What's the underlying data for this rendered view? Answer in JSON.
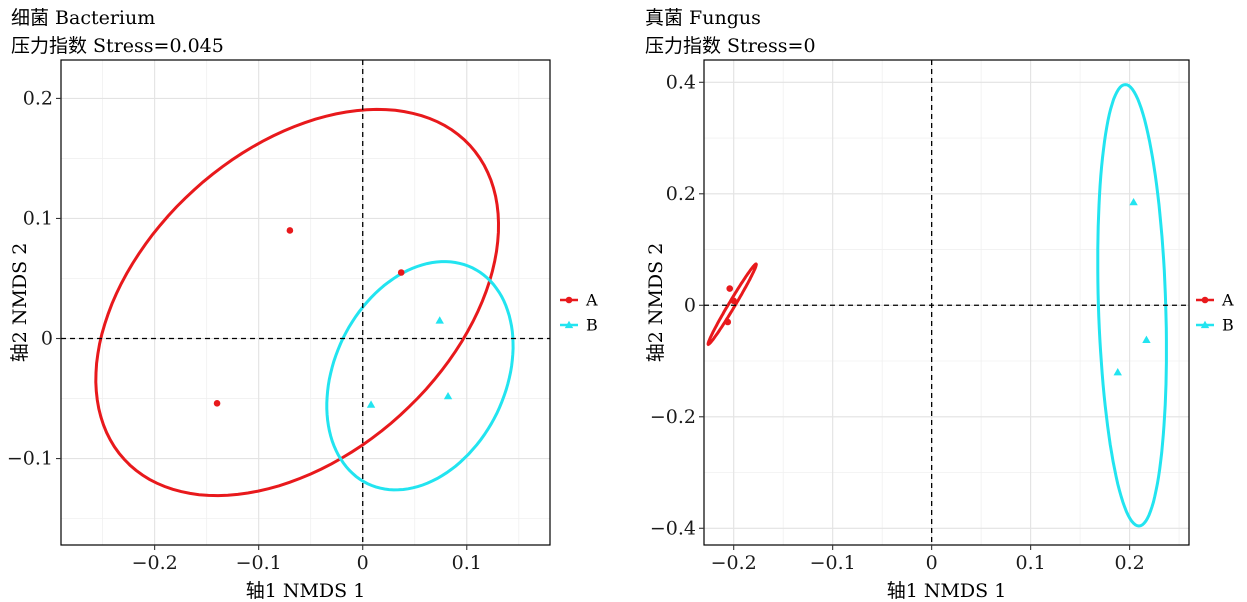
{
  "chart_data": [
    {
      "type": "scatter",
      "title": "细菌 Bacterium",
      "subtitle": "压力指数 Stress=0.045",
      "xlabel": "轴1  NMDS 1",
      "ylabel": "轴2  NMDS 2",
      "xlim": [
        -0.29,
        0.18
      ],
      "ylim": [
        -0.172,
        0.232
      ],
      "xticks": [
        -0.2,
        -0.1,
        0,
        0.1
      ],
      "xtick_labels": [
        "−0.2",
        "−0.1",
        "0",
        "0.1"
      ],
      "yticks": [
        -0.1,
        0,
        0.1,
        0.2
      ],
      "ytick_labels": [
        "−0.1",
        "0",
        "0.1",
        "0.2"
      ],
      "grid": true,
      "reference_lines": {
        "x": 0,
        "y": 0,
        "style": "dashed"
      },
      "legend_position": "right",
      "series": [
        {
          "name": "A",
          "color": "#e8191c",
          "marker": "circle",
          "points": [
            [
              -0.07,
              0.09
            ],
            [
              0.037,
              0.055
            ],
            [
              -0.14,
              -0.054
            ]
          ],
          "ellipse": {
            "cx": -0.063,
            "cy": 0.03,
            "rx": 0.213,
            "ry": 0.134,
            "angle_deg": 32.5
          }
        },
        {
          "name": "B",
          "color": "#22e4f0",
          "marker": "triangle",
          "points": [
            [
              0.074,
              0.015
            ],
            [
              0.008,
              -0.055
            ],
            [
              0.082,
              -0.048
            ]
          ],
          "ellipse": {
            "cx": 0.055,
            "cy": -0.031,
            "rx": 0.104,
            "ry": 0.079,
            "angle_deg": 51.5
          }
        }
      ]
    },
    {
      "type": "scatter",
      "title": "真菌 Fungus",
      "subtitle": "压力指数 Stress=0",
      "xlabel": "轴1  NMDS 1",
      "ylabel": "轴2  NMDS 2",
      "xlim": [
        -0.23,
        0.26
      ],
      "ylim": [
        -0.43,
        0.44
      ],
      "xticks": [
        -0.2,
        -0.1,
        0,
        0.1,
        0.2
      ],
      "xtick_labels": [
        "−0.2",
        "−0.1",
        "0",
        "0.1",
        "0.2"
      ],
      "yticks": [
        -0.4,
        -0.2,
        0,
        0.2,
        0.4
      ],
      "ytick_labels": [
        "−0.4",
        "−0.2",
        "0",
        "0.2",
        "0.4"
      ],
      "grid": true,
      "reference_lines": {
        "x": 0,
        "y": 0,
        "style": "dashed"
      },
      "legend_position": "right",
      "series": [
        {
          "name": "A",
          "color": "#e8191c",
          "marker": "circle",
          "points": [
            [
              -0.204,
              0.03
            ],
            [
              -0.2,
              0.008
            ],
            [
              -0.206,
              -0.03
            ]
          ],
          "ellipse": {
            "cx": -0.2015,
            "cy": 0.002,
            "rx": 0.076,
            "ry": 0.0035,
            "angle_deg": 71.5
          }
        },
        {
          "name": "B",
          "color": "#22e4f0",
          "marker": "triangle",
          "points": [
            [
              0.204,
              0.185
            ],
            [
              0.217,
              -0.062
            ],
            [
              0.188,
              -0.12
            ]
          ],
          "ellipse": {
            "cx": 0.2025,
            "cy": 0.0,
            "rx": 0.034,
            "ry": 0.396,
            "angle_deg": 1.0
          }
        }
      ]
    }
  ]
}
